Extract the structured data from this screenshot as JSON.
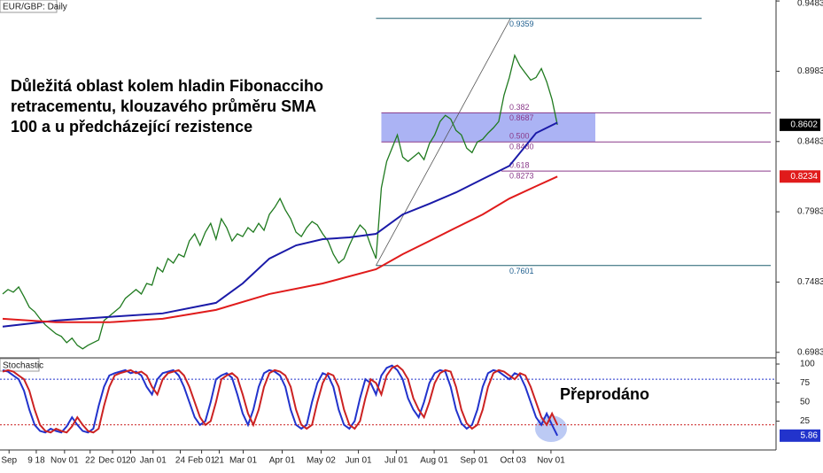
{
  "chart_data": [
    {
      "type": "line",
      "title": "EUR/GBP: Daily",
      "annotation": [
        "Důležitá oblast kolem hladin Fibonacciho",
        "retracementu, klouzavého průměru SMA",
        "100 a u předcházející rezistence"
      ],
      "xlim": [
        -0.5,
        145
      ],
      "xticks": [
        {
          "value": 1.2,
          "label": "Sep"
        },
        {
          "value": 6.3,
          "label": "9 18"
        },
        {
          "value": 11.6,
          "label": "Nov 01"
        },
        {
          "value": 16.4,
          "label": "22"
        },
        {
          "value": 20.6,
          "label": "Dec 01"
        },
        {
          "value": 24,
          "label": "20"
        },
        {
          "value": 28.2,
          "label": "Jan 01"
        },
        {
          "value": 33.3,
          "label": "24"
        },
        {
          "value": 37.3,
          "label": "Feb 01"
        },
        {
          "value": 40.6,
          "label": "21"
        },
        {
          "value": 45.1,
          "label": "Mar 01"
        },
        {
          "value": 52.4,
          "label": "Apr 01"
        },
        {
          "value": 59.7,
          "label": "May 02"
        },
        {
          "value": 66.7,
          "label": "Jun 01"
        },
        {
          "value": 73.8,
          "label": "Jul 01"
        },
        {
          "value": 80.9,
          "label": "Aug 01"
        },
        {
          "value": 88.4,
          "label": "Sep 01"
        },
        {
          "value": 95.7,
          "label": "Oct 03"
        },
        {
          "value": 102.8,
          "label": "Nov 01"
        }
      ],
      "ylim": [
        0.695,
        0.949
      ],
      "yticks": [
        0.9483,
        0.8983,
        0.8483,
        0.7983,
        0.7483,
        0.6983
      ],
      "series": [
        {
          "color": "#1f7a1f",
          "values": [
            0.7398,
            0.743,
            0.7411,
            0.7448,
            0.7379,
            0.7304,
            0.7272,
            0.7222,
            0.7178,
            0.7146,
            0.7115,
            0.7096,
            0.7052,
            0.7084,
            0.7033,
            0.7008,
            0.7033,
            0.7052,
            0.7071,
            0.7209,
            0.7241,
            0.7272,
            0.7304,
            0.7367,
            0.7398,
            0.743,
            0.7398,
            0.7473,
            0.7461,
            0.7587,
            0.7555,
            0.765,
            0.7618,
            0.7681,
            0.7662,
            0.7775,
            0.7826,
            0.7744,
            0.7838,
            0.7901,
            0.7788,
            0.7933,
            0.787,
            0.7775,
            0.7826,
            0.7807,
            0.787,
            0.7838,
            0.7901,
            0.7851,
            0.7964,
            0.8014,
            0.8077,
            0.7996,
            0.7933,
            0.7838,
            0.7807,
            0.787,
            0.7914,
            0.7889,
            0.7826,
            0.7775,
            0.7681,
            0.7618,
            0.765,
            0.7744,
            0.7826,
            0.7889,
            0.7851,
            0.7744,
            0.765,
            0.8153,
            0.8341,
            0.8436,
            0.853,
            0.8373,
            0.8341,
            0.8373,
            0.8404,
            0.8354,
            0.8467,
            0.853,
            0.8625,
            0.8669,
            0.8643,
            0.8562,
            0.853,
            0.8436,
            0.8404,
            0.848,
            0.8499,
            0.8543,
            0.858,
            0.8625,
            0.8813,
            0.8939,
            0.9096,
            0.9021,
            0.897,
            0.892,
            0.8939,
            0.9002,
            0.8908,
            0.8782,
            0.8602
          ]
        },
        {
          "color": "#1a1aa8",
          "x": [
            0,
            10,
            20,
            30,
            40,
            45,
            50,
            55,
            60,
            65,
            70,
            75,
            80,
            85,
            90,
            95,
            100,
            104
          ],
          "values": [
            0.7166,
            0.7209,
            0.7235,
            0.726,
            0.7335,
            0.7473,
            0.765,
            0.7744,
            0.7788,
            0.7801,
            0.7826,
            0.7964,
            0.804,
            0.8121,
            0.8216,
            0.831,
            0.8543,
            0.8618
          ]
        },
        {
          "color": "#e01b1b",
          "x": [
            0,
            10,
            20,
            30,
            40,
            50,
            60,
            70,
            75,
            80,
            85,
            90,
            95,
            100,
            104
          ],
          "values": [
            0.7222,
            0.7197,
            0.7197,
            0.7222,
            0.7285,
            0.7398,
            0.7473,
            0.7574,
            0.7681,
            0.7775,
            0.787,
            0.7964,
            0.8077,
            0.8165,
            0.8234
          ]
        }
      ],
      "fibonacci": {
        "high": 0.9359,
        "low": 0.7601,
        "levels": [
          {
            "ratio": 0.382,
            "price": 0.8687
          },
          {
            "ratio": {
              "value": 0.5,
              "label": "0.500"
            },
            "price": {
              "value": 0.848,
              "label": "0.8480"
            }
          },
          {
            "ratio": 0.618,
            "price": 0.8273
          }
        ]
      }
    },
    {
      "type": "line",
      "title": "Stochastic",
      "annotation": "Přeprodáno",
      "ylim": [
        -13,
        107
      ],
      "yticks": [
        100,
        75,
        50,
        25
      ],
      "levels": [
        {
          "value": 80,
          "color": "#2233cc"
        },
        {
          "value": 20,
          "color": "#cc2222"
        }
      ],
      "series": [
        {
          "color": "#2233cc",
          "values": [
            92,
            90,
            85,
            80,
            65,
            40,
            20,
            12,
            10,
            15,
            12,
            10,
            18,
            30,
            20,
            12,
            10,
            15,
            45,
            70,
            85,
            88,
            90,
            92,
            88,
            90,
            85,
            70,
            60,
            80,
            88,
            90,
            92,
            85,
            70,
            50,
            30,
            20,
            25,
            50,
            80,
            85,
            88,
            82,
            60,
            35,
            20,
            40,
            70,
            88,
            92,
            90,
            85,
            70,
            40,
            20,
            15,
            20,
            50,
            75,
            88,
            85,
            70,
            40,
            20,
            15,
            25,
            55,
            80,
            75,
            60,
            85,
            95,
            98,
            92,
            80,
            55,
            40,
            30,
            50,
            75,
            88,
            92,
            90,
            70,
            40,
            22,
            15,
            20,
            40,
            70,
            88,
            92,
            90,
            85,
            80,
            88,
            85,
            70,
            50,
            30,
            20,
            35,
            20,
            5.86
          ]
        },
        {
          "color": "#cc2222",
          "values": [
            90,
            92,
            90,
            85,
            80,
            65,
            40,
            20,
            12,
            10,
            15,
            12,
            10,
            18,
            30,
            20,
            12,
            10,
            15,
            45,
            70,
            85,
            88,
            90,
            92,
            88,
            90,
            85,
            70,
            60,
            80,
            88,
            90,
            92,
            85,
            70,
            50,
            30,
            20,
            25,
            50,
            80,
            85,
            88,
            82,
            60,
            35,
            20,
            40,
            70,
            88,
            92,
            90,
            85,
            70,
            40,
            20,
            15,
            20,
            50,
            75,
            88,
            85,
            70,
            40,
            20,
            15,
            25,
            55,
            80,
            75,
            60,
            85,
            95,
            98,
            92,
            80,
            55,
            40,
            30,
            50,
            75,
            88,
            92,
            90,
            70,
            40,
            22,
            15,
            20,
            40,
            70,
            88,
            92,
            90,
            85,
            80,
            88,
            85,
            70,
            50,
            30,
            20,
            35,
            20
          ]
        }
      ]
    }
  ]
}
